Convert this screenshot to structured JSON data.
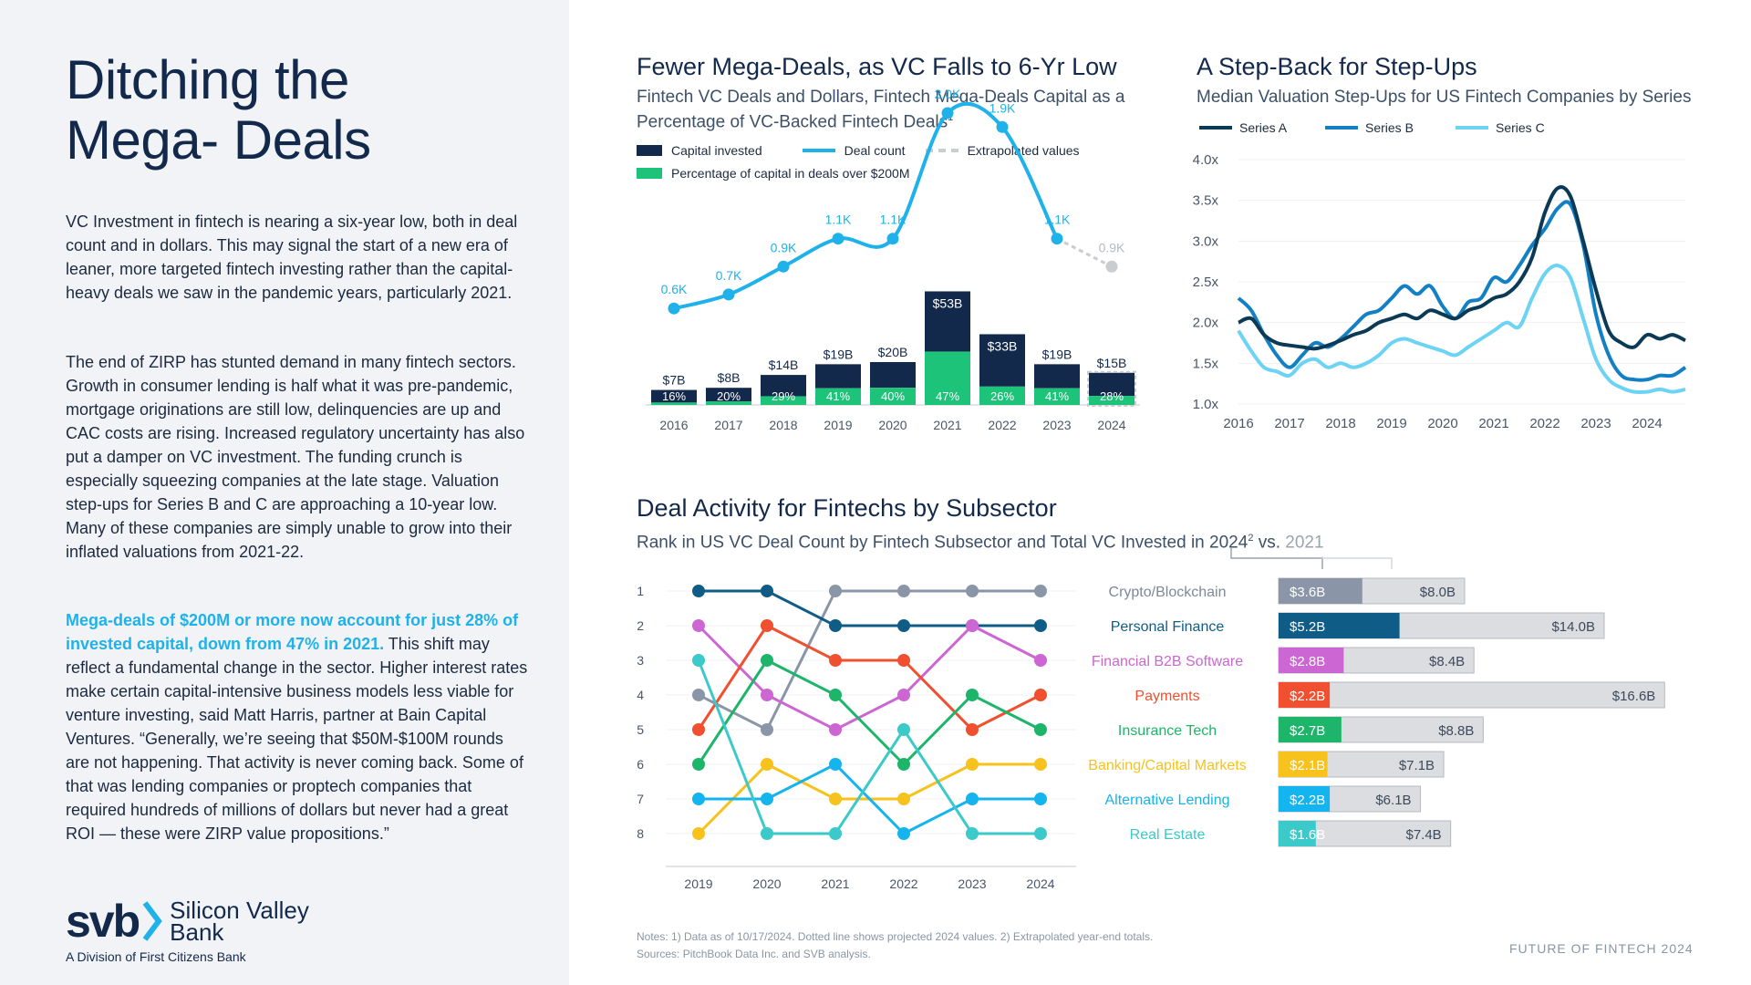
{
  "left": {
    "title_line1": "Ditching the",
    "title_line2": "Mega- Deals",
    "para1": "VC Investment in fintech is nearing a six-year low, both in deal count and in dollars. This may signal the start of a new era of leaner, more targeted fintech investing rather than the capital-heavy deals we saw in the pandemic years, particularly 2021.",
    "para2": "The end of ZIRP has stunted demand in many fintech sectors. Growth in consumer lending is half what it was pre-pandemic, mortgage originations are still low, delinquencies are up and CAC costs are rising. Increased regulatory uncertainty has also put a damper on VC investment. The funding crunch is especially squeezing companies at the late stage. Valuation step-ups for Series B and C are approaching a 10-year low. Many of these companies are simply unable to grow into their inflated valuations from 2021-22.",
    "para3_highlight": "Mega-deals of $200M or more now account for just 28% of invested capital, down from 47% in 2021.",
    "para3_rest": " This shift may reflect a fundamental change in the sector. Higher interest rates make certain capital-intensive business models less viable for venture investing, said Matt Harris, partner at Bain Capital Ventures. “Generally, we’re seeing that $50M-$100M rounds are not happening. That activity is never coming back. Some of that was lending companies or proptech companies that required hundreds of millions of dollars but never had a great ROI — these were ZIRP value propositions.”",
    "logo_mark": "svb",
    "logo_name_line1": "Silicon Valley",
    "logo_name_line2": "Bank",
    "logo_sub": "A Division of First Citizens Bank"
  },
  "chart1": {
    "title": "Fewer Mega-Deals, as VC Falls to 6-Yr Low",
    "subtitle_line1": "Fintech VC Deals and Dollars, Fintech Mega-Deals Capital as a",
    "subtitle_line2": "Percentage of VC-Backed Fintech Deals",
    "subtitle_sup": "1",
    "legend": {
      "capital": "Capital invested",
      "deals": "Deal count",
      "extrap": "Extrapolated values",
      "pct": "Percentage of capital in deals over $200M"
    }
  },
  "chart2": {
    "title": "A Step-Back for Step-Ups",
    "subtitle": "Median Valuation Step-Ups for US Fintech Companies by Series"
  },
  "chart3": {
    "title": "Deal Activity for Fintechs by Subsector",
    "subtitle_main": "Rank in US VC Deal Count by Fintech Subsector and Total VC Invested in 2024",
    "subtitle_sup": "2",
    "subtitle_vs": " vs. ",
    "subtitle_year": "2021"
  },
  "footer": {
    "notes": "Notes: 1) Data as of 10/17/2024. Dotted line shows projected 2024 values. 2) Extrapolated year-end totals.",
    "sources": "Sources: PitchBook Data Inc. and SVB analysis.",
    "right": "FUTURE OF FINTECH 2024"
  },
  "colors": {
    "navy": "#13294b",
    "green": "#1ec37a",
    "cyan": "#1fb2ea",
    "gray": "#c9ccd1"
  },
  "chart_data": [
    {
      "id": "mega-deals",
      "type": "bar",
      "categories": [
        "2016",
        "2017",
        "2018",
        "2019",
        "2020",
        "2021",
        "2022",
        "2023",
        "2024"
      ],
      "capital_invested_billions": [
        7,
        8,
        14,
        19,
        20,
        53,
        33,
        19,
        15
      ],
      "capital_labels": [
        "$7B",
        "$8B",
        "$14B",
        "$19B",
        "$20B",
        "$53B",
        "$33B",
        "$19B",
        "$15B"
      ],
      "pct_over_200m": [
        16,
        20,
        29,
        41,
        40,
        47,
        26,
        41,
        28
      ],
      "pct_labels": [
        "16%",
        "20%",
        "29%",
        "41%",
        "40%",
        "47%",
        "26%",
        "41%",
        "28%"
      ],
      "deal_count_k": [
        0.6,
        0.7,
        0.9,
        1.1,
        1.1,
        2.0,
        1.9,
        1.1,
        0.9
      ],
      "deal_labels": [
        "0.6K",
        "0.7K",
        "0.9K",
        "1.1K",
        "1.1K",
        "2.0K",
        "1.9K",
        "1.1K",
        "0.9K"
      ],
      "extrapolated": [
        false,
        false,
        false,
        false,
        false,
        false,
        false,
        false,
        true
      ]
    },
    {
      "id": "step-ups",
      "type": "line",
      "x_ticks": [
        "2016",
        "2017",
        "2018",
        "2019",
        "2020",
        "2021",
        "2022",
        "2023",
        "2024"
      ],
      "y_ticks": [
        "1.0x",
        "1.5x",
        "2.0x",
        "2.5x",
        "3.0x",
        "3.5x",
        "4.0x"
      ],
      "ylim": [
        1.0,
        4.0
      ],
      "xlim": [
        2016,
        2024.75
      ],
      "series": [
        {
          "name": "Series A",
          "color": "#0b3a57",
          "x": [
            2016,
            2016.25,
            2016.5,
            2016.75,
            2017,
            2017.25,
            2017.5,
            2017.75,
            2018,
            2018.25,
            2018.5,
            2018.75,
            2019,
            2019.25,
            2019.5,
            2019.75,
            2020,
            2020.25,
            2020.5,
            2020.75,
            2021,
            2021.25,
            2021.5,
            2021.75,
            2022,
            2022.25,
            2022.5,
            2022.75,
            2023,
            2023.25,
            2023.5,
            2023.75,
            2024,
            2024.25,
            2024.5,
            2024.75
          ],
          "y": [
            2.0,
            2.05,
            1.85,
            1.75,
            1.72,
            1.7,
            1.68,
            1.72,
            1.78,
            1.85,
            1.9,
            2.0,
            2.05,
            2.1,
            2.05,
            2.15,
            2.1,
            2.05,
            2.15,
            2.2,
            2.3,
            2.35,
            2.5,
            2.8,
            3.35,
            3.65,
            3.55,
            3.0,
            2.4,
            1.9,
            1.75,
            1.7,
            1.85,
            1.8,
            1.85,
            1.78
          ]
        },
        {
          "name": "Series B",
          "color": "#1480c4",
          "x": [
            2016,
            2016.25,
            2016.5,
            2016.75,
            2017,
            2017.25,
            2017.5,
            2017.75,
            2018,
            2018.25,
            2018.5,
            2018.75,
            2019,
            2019.25,
            2019.5,
            2019.75,
            2020,
            2020.25,
            2020.5,
            2020.75,
            2021,
            2021.25,
            2021.5,
            2021.75,
            2022,
            2022.25,
            2022.5,
            2022.75,
            2023,
            2023.25,
            2023.5,
            2023.75,
            2024,
            2024.25,
            2024.5,
            2024.75
          ],
          "y": [
            2.3,
            2.15,
            1.85,
            1.6,
            1.45,
            1.6,
            1.75,
            1.7,
            1.8,
            1.95,
            2.1,
            2.15,
            2.3,
            2.45,
            2.35,
            2.45,
            2.2,
            2.05,
            2.25,
            2.3,
            2.55,
            2.5,
            2.7,
            2.95,
            3.15,
            3.4,
            3.45,
            2.95,
            2.1,
            1.6,
            1.35,
            1.3,
            1.3,
            1.35,
            1.35,
            1.45
          ]
        },
        {
          "name": "Series C",
          "color": "#6dd3f5",
          "x": [
            2016,
            2016.25,
            2016.5,
            2016.75,
            2017,
            2017.25,
            2017.5,
            2017.75,
            2018,
            2018.25,
            2018.5,
            2018.75,
            2019,
            2019.25,
            2019.5,
            2019.75,
            2020,
            2020.25,
            2020.5,
            2020.75,
            2021,
            2021.25,
            2021.5,
            2021.75,
            2022,
            2022.25,
            2022.5,
            2022.75,
            2023,
            2023.25,
            2023.5,
            2023.75,
            2024,
            2024.25,
            2024.5,
            2024.75
          ],
          "y": [
            1.9,
            1.65,
            1.45,
            1.4,
            1.35,
            1.5,
            1.55,
            1.45,
            1.5,
            1.45,
            1.5,
            1.6,
            1.75,
            1.8,
            1.75,
            1.7,
            1.65,
            1.6,
            1.7,
            1.8,
            1.9,
            2.0,
            1.95,
            2.3,
            2.6,
            2.7,
            2.55,
            2.05,
            1.55,
            1.3,
            1.2,
            1.15,
            1.15,
            1.18,
            1.15,
            1.18
          ]
        }
      ],
      "legend": [
        "Series A",
        "Series B",
        "Series C"
      ],
      "legend_position": "top"
    },
    {
      "id": "subsector-rank",
      "type": "line",
      "x": [
        "2019",
        "2020",
        "2021",
        "2022",
        "2023",
        "2024"
      ],
      "y_ticks": [
        "1",
        "2",
        "3",
        "4",
        "5",
        "6",
        "7",
        "8"
      ],
      "y_inverted": true,
      "series": [
        {
          "name": "Crypto/Blockchain",
          "color": "#8a96a8",
          "ranks": [
            4,
            5,
            1,
            1,
            1,
            1
          ],
          "vc_2024": "$3.6B",
          "vc_2021": "$8.0B",
          "vc_2024_value": 3.6,
          "vc_2021_value": 8.0
        },
        {
          "name": "Personal Finance",
          "color": "#0f5d86",
          "ranks": [
            1,
            1,
            2,
            2,
            2,
            2
          ],
          "vc_2024": "$5.2B",
          "vc_2021": "$14.0B",
          "vc_2024_value": 5.2,
          "vc_2021_value": 14.0
        },
        {
          "name": "Financial B2B Software",
          "color": "#cc66d3",
          "ranks": [
            2,
            4,
            5,
            4,
            2,
            3
          ],
          "vc_2024": "$2.8B",
          "vc_2021": "$8.4B",
          "vc_2024_value": 2.8,
          "vc_2021_value": 8.4
        },
        {
          "name": "Payments",
          "color": "#f0502f",
          "ranks": [
            5,
            2,
            3,
            3,
            5,
            4
          ],
          "vc_2024": "$2.2B",
          "vc_2021": "$16.6B",
          "vc_2024_value": 2.2,
          "vc_2021_value": 16.6
        },
        {
          "name": "Insurance Tech",
          "color": "#1db56a",
          "ranks": [
            6,
            3,
            4,
            6,
            4,
            5
          ],
          "vc_2024": "$2.7B",
          "vc_2021": "$8.8B",
          "vc_2024_value": 2.7,
          "vc_2021_value": 8.8
        },
        {
          "name": "Banking/Capital Markets",
          "color": "#f7c21b",
          "ranks": [
            8,
            6,
            7,
            7,
            6,
            6
          ],
          "vc_2024": "$2.1B",
          "vc_2021": "$7.1B",
          "vc_2024_value": 2.1,
          "vc_2021_value": 7.1
        },
        {
          "name": "Alternative Lending",
          "color": "#14b4ee",
          "ranks": [
            7,
            7,
            6,
            8,
            7,
            7
          ],
          "vc_2024": "$2.2B",
          "vc_2021": "$6.1B",
          "vc_2024_value": 2.2,
          "vc_2021_value": 6.1
        },
        {
          "name": "Real Estate",
          "color": "#3cc9c9",
          "ranks": [
            3,
            8,
            8,
            5,
            8,
            8
          ],
          "vc_2024": "$1.6B",
          "vc_2021": "$7.4B",
          "vc_2024_value": 1.6,
          "vc_2021_value": 7.4
        }
      ]
    }
  ]
}
